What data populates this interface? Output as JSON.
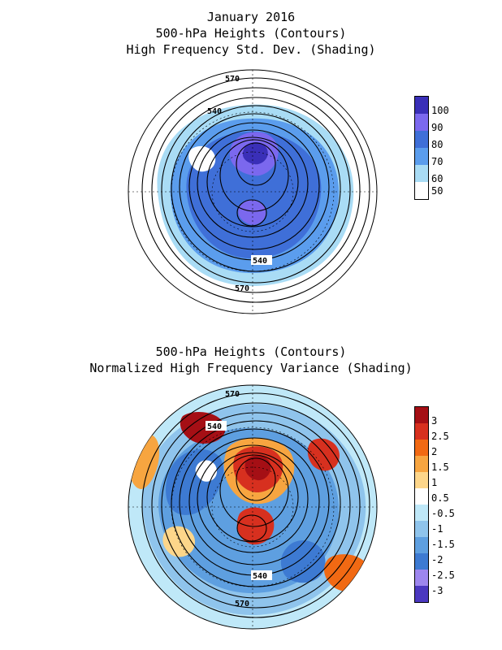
{
  "top_panel": {
    "title_lines": [
      "January 2016",
      "500-hPa Heights (Contours)",
      "High Frequency Std. Dev. (Shading)"
    ],
    "contour_labels": [
      "570",
      "540",
      "540",
      "570"
    ],
    "colorbar": {
      "levels": [
        "100",
        "90",
        "80",
        "70",
        "60",
        "50"
      ],
      "colors": [
        "#3a2fb8",
        "#7b68ee",
        "#3f6fd8",
        "#5b9ded",
        "#a9dcf5",
        "#ffffff"
      ]
    }
  },
  "bottom_panel": {
    "title_lines": [
      "500-hPa Heights (Contours)",
      "Normalized High Frequency Variance (Shading)"
    ],
    "contour_labels": [
      "570",
      "540",
      "540",
      "570"
    ],
    "colorbar": {
      "levels": [
        "3",
        "2.5",
        "2",
        "1.5",
        "1",
        "0.5",
        "-0.5",
        "-1",
        "-1.5",
        "-2",
        "-2.5",
        "-3"
      ],
      "colors": [
        "#a50f15",
        "#d7301f",
        "#f16913",
        "#f7a540",
        "#fdd68a",
        "#ffffff",
        "#bfe8f8",
        "#8fc4ec",
        "#5e9fe0",
        "#3d7ad2",
        "#9d86ee",
        "#4b38c0"
      ]
    }
  }
}
